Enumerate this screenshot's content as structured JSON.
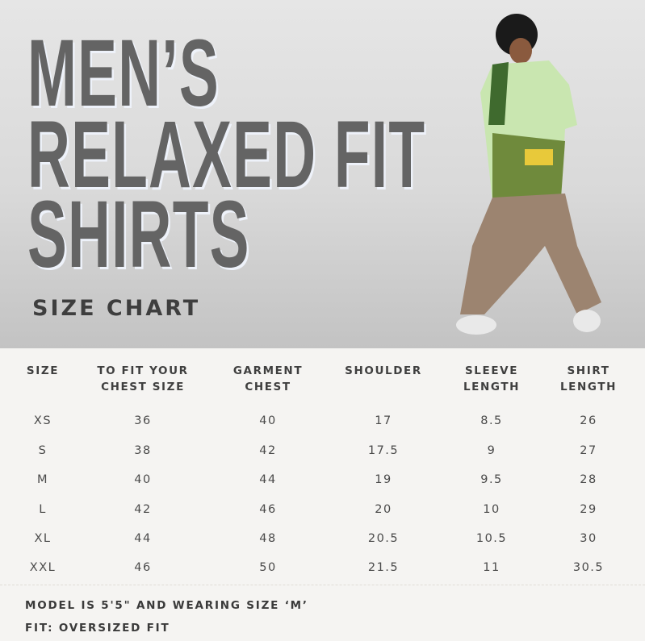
{
  "title": {
    "line1": "MEN’S",
    "line2": "RELAXED FIT",
    "line3": "SHIRTS",
    "subtitle": "SIZE CHART"
  },
  "table": {
    "headers": [
      [
        "SIZE",
        ""
      ],
      [
        "TO FIT YOUR",
        "CHEST SIZE"
      ],
      [
        "GARMENT",
        "CHEST"
      ],
      [
        "SHOULDER",
        ""
      ],
      [
        "SLEEVE",
        "LENGTH"
      ],
      [
        "SHIRT",
        "LENGTH"
      ]
    ],
    "rows": [
      [
        "XS",
        "36",
        "40",
        "17",
        "8.5",
        "26"
      ],
      [
        "S",
        "38",
        "42",
        "17.5",
        "9",
        "27"
      ],
      [
        "M",
        "40",
        "44",
        "19",
        "9.5",
        "28"
      ],
      [
        "L",
        "42",
        "46",
        "20",
        "10",
        "29"
      ],
      [
        "XL",
        "44",
        "48",
        "20.5",
        "10.5",
        "30"
      ],
      [
        "XXL",
        "46",
        "50",
        "21.5",
        "11",
        "30.5"
      ]
    ]
  },
  "footer": {
    "model_note": "MODEL IS 5'5\" AND WEARING SIZE ‘M’",
    "fit": "FIT: OVERSIZED FIT"
  },
  "colors": {
    "title": "#646464",
    "table_bg": "#f5f4f2"
  }
}
